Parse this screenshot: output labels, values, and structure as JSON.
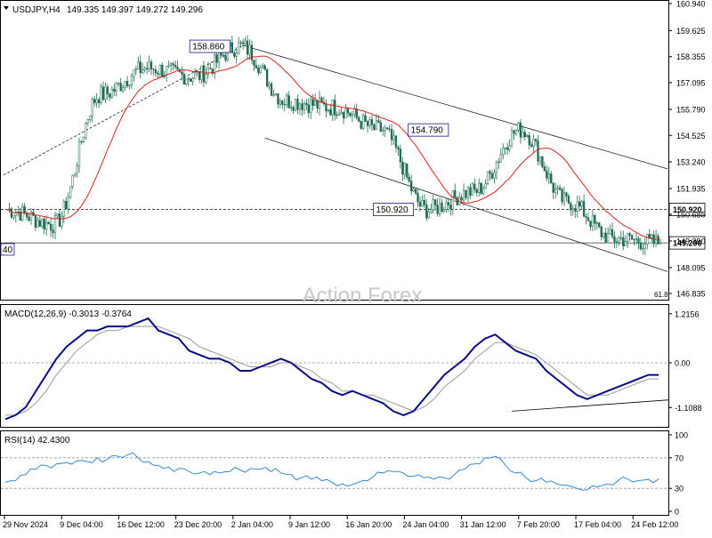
{
  "watermark": "Action Forex",
  "colors": {
    "candle": "#1e6b52",
    "ma": "#e0201b",
    "macd": "#0a0a8c",
    "signal": "#9a9a9a",
    "rsi": "#1e7fd8",
    "channel": "#222222",
    "level": "#333333",
    "frame": "#000000"
  },
  "chart_data": [
    {
      "type": "candlestick",
      "title": "USDJPY,H4",
      "ohlc_label": "149.335 149.397 149.272 149.296",
      "ylim": [
        146.835,
        160.94
      ],
      "y_ticks": [
        "160.940",
        "159.625",
        "158.355",
        "157.095",
        "155.790",
        "154.525",
        "153.240",
        "151.935",
        "150.685",
        "149.390",
        "148.095",
        "146.835"
      ],
      "ma_label": "",
      "level_labels": [
        {
          "text": "150.920",
          "value": 150.92
        },
        {
          "text": "149.296",
          "value": 149.296
        }
      ],
      "annotations": [
        {
          "text": "158.860",
          "value": 158.86
        },
        {
          "text": "154.790",
          "value": 154.79
        },
        {
          "text": "150.920",
          "value": 150.92
        }
      ],
      "left_clip_label": "40",
      "fib_label": "61.8",
      "close_price": 149.296,
      "key_points": [
        {
          "x": "29 Nov 2024",
          "y": 150.9
        },
        {
          "x": "9 Dec 04:00",
          "y": 150.2
        },
        {
          "x": "16 Dec 12:00",
          "y": 156.5
        },
        {
          "x": "23 Dec 20:00",
          "y": 157.8
        },
        {
          "x": "2 Jan 04:00",
          "y": 157.4
        },
        {
          "x": "9 Jan 12:00",
          "y": 158.86
        },
        {
          "x": "16 Jan 20:00",
          "y": 156.2
        },
        {
          "x": "24 Jan 04:00",
          "y": 155.9
        },
        {
          "x": "31 Jan 12:00",
          "y": 154.8
        },
        {
          "x": "4 Feb",
          "y": 150.92
        },
        {
          "x": "7 Feb 20:00",
          "y": 151.8
        },
        {
          "x": "10 Feb",
          "y": 154.79
        },
        {
          "x": "17 Feb 04:00",
          "y": 151.3
        },
        {
          "x": "24 Feb 12:00",
          "y": 149.5
        },
        {
          "x": "27 Feb",
          "y": 149.296
        }
      ]
    },
    {
      "type": "line",
      "title": "MACD(12,26,9) -0.3013 -0.3764",
      "ylim": [
        -1.5,
        1.3
      ],
      "y_ticks": [
        "1.2156",
        "0.00",
        "-1.1088"
      ],
      "series": [
        {
          "name": "MACD",
          "values": [
            -1.4,
            -1.3,
            -1.1,
            -0.7,
            -0.3,
            0.1,
            0.4,
            0.6,
            0.8,
            0.8,
            0.9,
            0.9,
            0.9,
            1.0,
            1.1,
            0.8,
            0.7,
            0.6,
            0.3,
            0.2,
            0.1,
            0.1,
            0.0,
            -0.2,
            -0.2,
            -0.1,
            0.0,
            0.1,
            0.0,
            -0.2,
            -0.4,
            -0.5,
            -0.7,
            -0.8,
            -0.7,
            -0.8,
            -0.9,
            -1.0,
            -1.2,
            -1.3,
            -1.2,
            -0.9,
            -0.6,
            -0.3,
            -0.1,
            0.1,
            0.4,
            0.6,
            0.7,
            0.5,
            0.3,
            0.2,
            0.1,
            -0.2,
            -0.4,
            -0.6,
            -0.8,
            -0.9,
            -0.8,
            -0.7,
            -0.6,
            -0.5,
            -0.4,
            -0.3,
            -0.3
          ]
        },
        {
          "name": "Signal",
          "values": [
            -1.3,
            -1.3,
            -1.2,
            -1.0,
            -0.7,
            -0.3,
            0.0,
            0.3,
            0.5,
            0.7,
            0.8,
            0.8,
            0.9,
            0.9,
            0.9,
            0.9,
            0.8,
            0.7,
            0.6,
            0.4,
            0.3,
            0.2,
            0.1,
            0.0,
            -0.1,
            -0.1,
            -0.1,
            0.0,
            0.0,
            -0.1,
            -0.2,
            -0.4,
            -0.5,
            -0.7,
            -0.7,
            -0.8,
            -0.8,
            -0.9,
            -1.0,
            -1.1,
            -1.2,
            -1.1,
            -0.9,
            -0.6,
            -0.4,
            -0.2,
            0.1,
            0.3,
            0.5,
            0.5,
            0.4,
            0.3,
            0.2,
            0.0,
            -0.2,
            -0.4,
            -0.6,
            -0.8,
            -0.8,
            -0.8,
            -0.7,
            -0.6,
            -0.5,
            -0.4,
            -0.4
          ]
        }
      ]
    },
    {
      "type": "line",
      "title": "RSI(14) 42.4300",
      "ylim": [
        0,
        100
      ],
      "y_ticks": [
        "100",
        "70",
        "30",
        "0"
      ],
      "series": [
        {
          "name": "RSI",
          "values": [
            38,
            40,
            48,
            55,
            60,
            62,
            64,
            66,
            65,
            70,
            68,
            72,
            74,
            70,
            65,
            60,
            58,
            56,
            52,
            50,
            48,
            50,
            52,
            54,
            56,
            55,
            52,
            50,
            48,
            44,
            42,
            40,
            38,
            36,
            35,
            40,
            45,
            50,
            52,
            50,
            46,
            44,
            42,
            44,
            48,
            55,
            62,
            70,
            72,
            60,
            50,
            44,
            40,
            38,
            36,
            34,
            30,
            28,
            32,
            36,
            40,
            42,
            40,
            42,
            42.43
          ]
        }
      ]
    }
  ],
  "x_axis": {
    "labels": [
      "29 Nov 2024",
      "9 Dec 04:00",
      "16 Dec 12:00",
      "23 Dec 20:00",
      "2 Jan 04:00",
      "9 Jan 12:00",
      "16 Jan 20:00",
      "24 Jan 04:00",
      "31 Jan 12:00",
      "7 Feb 20:00",
      "17 Feb 04:00",
      "24 Feb 12:00"
    ]
  }
}
